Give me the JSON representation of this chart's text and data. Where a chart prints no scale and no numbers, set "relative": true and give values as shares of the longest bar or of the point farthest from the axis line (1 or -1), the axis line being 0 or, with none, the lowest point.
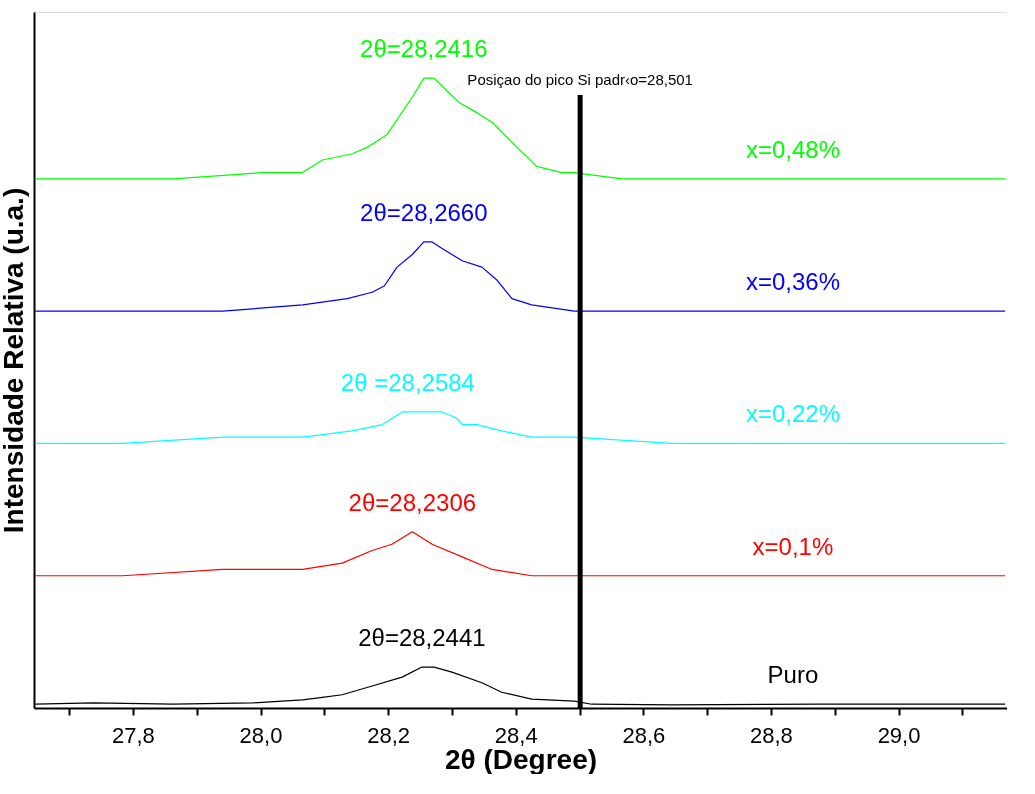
{
  "chart_data": {
    "type": "line",
    "relative": true,
    "xlabel": "2θ (Degree)",
    "ylabel": "Intensidade Relativa (u.a.)",
    "xlim": [
      27.645,
      29.17
    ],
    "xticks": [
      {
        "value": 27.7,
        "label": null
      },
      {
        "value": 27.8,
        "label": "27,8"
      },
      {
        "value": 27.9,
        "label": null
      },
      {
        "value": 28.0,
        "label": "28,0"
      },
      {
        "value": 28.1,
        "label": null
      },
      {
        "value": 28.2,
        "label": "28,2"
      },
      {
        "value": 28.3,
        "label": null
      },
      {
        "value": 28.4,
        "label": "28,4"
      },
      {
        "value": 28.5,
        "label": null
      },
      {
        "value": 28.6,
        "label": "28,6"
      },
      {
        "value": 28.7,
        "label": null
      },
      {
        "value": 28.8,
        "label": "28,8"
      },
      {
        "value": 28.9,
        "label": null
      },
      {
        "value": 29.0,
        "label": "29,0"
      },
      {
        "value": 29.1,
        "label": null
      }
    ],
    "grid": false,
    "marker": "none",
    "line_style": "solid",
    "series": [
      {
        "name": "Puro",
        "color": "#000000",
        "x": [
          27.647,
          27.738,
          27.863,
          27.988,
          28.066,
          28.097,
          28.128,
          28.175,
          28.222,
          28.253,
          28.272,
          28.3,
          28.347,
          28.378,
          28.425,
          28.492,
          28.519,
          28.644,
          28.878,
          29.167
        ],
        "values": [
          0.006,
          0.008,
          0.006,
          0.008,
          0.013,
          0.017,
          0.021,
          0.035,
          0.049,
          0.065,
          0.065,
          0.057,
          0.04,
          0.025,
          0.014,
          0.011,
          0.006,
          0.005,
          0.006,
          0.006
        ]
      },
      {
        "name": "x=0,1%",
        "color": "#ff0000",
        "x": [
          27.647,
          27.784,
          27.941,
          28.066,
          28.128,
          28.175,
          28.206,
          28.238,
          28.269,
          28.316,
          28.363,
          28.425,
          28.492,
          28.644,
          28.878,
          29.167
        ],
        "values": [
          0.21,
          0.21,
          0.22,
          0.22,
          0.23,
          0.25,
          0.26,
          0.28,
          0.26,
          0.24,
          0.22,
          0.21,
          0.21,
          0.21,
          0.21,
          0.21
        ]
      },
      {
        "name": "x=0,22%",
        "color": "#00ffff",
        "x": [
          27.647,
          27.784,
          27.941,
          28.066,
          28.144,
          28.191,
          28.222,
          28.253,
          28.284,
          28.308,
          28.316,
          28.339,
          28.378,
          28.425,
          28.492,
          28.644,
          28.878,
          29.167
        ],
        "values": [
          0.42,
          0.42,
          0.43,
          0.43,
          0.44,
          0.45,
          0.47,
          0.47,
          0.47,
          0.46,
          0.45,
          0.45,
          0.44,
          0.43,
          0.43,
          0.42,
          0.42,
          0.42
        ]
      },
      {
        "name": "x=0,36%",
        "color": "#0000ff",
        "x": [
          27.647,
          27.784,
          27.941,
          28.066,
          28.136,
          28.175,
          28.194,
          28.214,
          28.238,
          28.256,
          28.269,
          28.284,
          28.316,
          28.347,
          28.37,
          28.394,
          28.425,
          28.492,
          28.644,
          28.8,
          28.956,
          29.167
        ],
        "values": [
          0.63,
          0.63,
          0.63,
          0.64,
          0.65,
          0.66,
          0.67,
          0.7,
          0.72,
          0.74,
          0.74,
          0.73,
          0.71,
          0.7,
          0.68,
          0.65,
          0.64,
          0.63,
          0.63,
          0.63,
          0.63,
          0.63
        ]
      },
      {
        "name": "x=0,48%",
        "color": "#00ff00",
        "x": [
          27.647,
          27.738,
          27.863,
          28.003,
          28.066,
          28.097,
          28.144,
          28.167,
          28.198,
          28.238,
          28.256,
          28.272,
          28.292,
          28.313,
          28.331,
          28.347,
          28.363,
          28.402,
          28.433,
          28.472,
          28.492,
          28.566,
          28.722,
          28.878,
          29.034,
          29.167
        ],
        "values": [
          0.84,
          0.84,
          0.84,
          0.85,
          0.85,
          0.87,
          0.88,
          0.89,
          0.91,
          0.97,
          1.0,
          1.0,
          0.98,
          0.96,
          0.95,
          0.94,
          0.93,
          0.89,
          0.86,
          0.85,
          0.85,
          0.84,
          0.84,
          0.84,
          0.84,
          0.84
        ]
      }
    ],
    "annotations": [
      {
        "text": "2θ=28,2441",
        "x": 28.253,
        "y": 0.065
      },
      {
        "text": "2θ=28,2306",
        "x": 28.238,
        "y": 0.28
      },
      {
        "text": "2θ =28,2584",
        "x": 28.231,
        "y": 0.47
      },
      {
        "text": "2θ=28,2660",
        "x": 28.256,
        "y": 0.74
      },
      {
        "text": "2θ=28,2416",
        "x": 28.256,
        "y": 1.0
      }
    ],
    "ref_lines": [
      {
        "axis": "x",
        "value": 28.501,
        "label": "Posiçao do pico Si padr‹o=28,501",
        "color": "#000000"
      }
    ]
  }
}
